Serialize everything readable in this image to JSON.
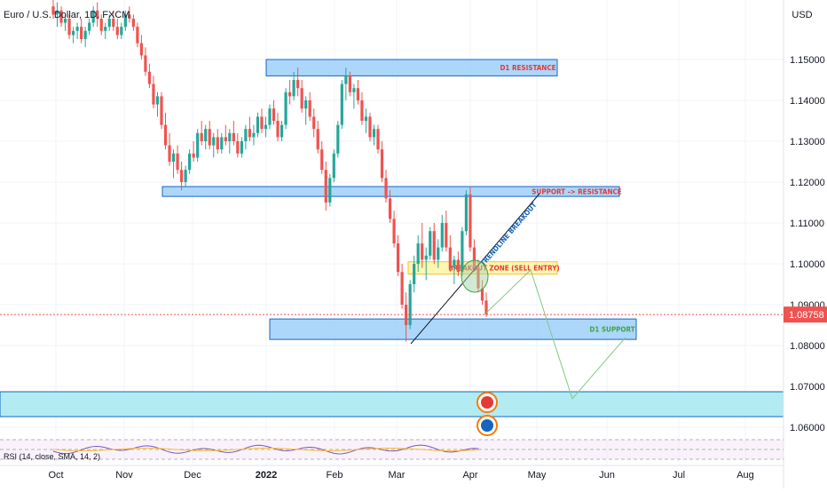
{
  "header": {
    "symbol": "Euro / U.S. Dollar, 1D, FXCM",
    "currency": "USD"
  },
  "chart_data": {
    "type": "candlestick",
    "price_axis_ticks": [
      "1.15000",
      "1.14000",
      "1.13000",
      "1.12000",
      "1.11000",
      "1.10000",
      "1.09000",
      "1.08000",
      "1.07000",
      "1.06000"
    ],
    "time_axis_ticks": [
      "Oct",
      "Nov",
      "Dec",
      "2022",
      "Feb",
      "Mar",
      "Apr",
      "May",
      "Jun",
      "Jul",
      "Aug"
    ],
    "last_price": "1.08758",
    "zones": [
      {
        "label": "D1 RESISTANCE",
        "top": 1.15,
        "bottom": 1.146,
        "color": "#e53935"
      },
      {
        "label": "SUPPORT -> RESISTANCE",
        "top": 1.1189,
        "bottom": 1.1165,
        "color": "#e53935"
      },
      {
        "label": "BREAKOUT ZONE (SELL ENTRY)",
        "top": 1.1005,
        "bottom": 1.0975,
        "color": "#e53935"
      },
      {
        "label": "D1 SUPPORT",
        "top": 1.0865,
        "bottom": 1.0815,
        "color": "#43a047"
      }
    ],
    "trendline_label": "TRENDLINE BREAKOUT",
    "projection_path": [
      1.088,
      1.0985,
      1.067,
      1.082
    ],
    "candles_approx": [
      [
        1.163,
        1.166,
        1.16,
        1.161
      ],
      [
        1.161,
        1.164,
        1.158,
        1.162
      ],
      [
        1.162,
        1.163,
        1.158,
        1.159
      ],
      [
        1.159,
        1.161,
        1.157,
        1.16
      ],
      [
        1.16,
        1.161,
        1.155,
        1.156
      ],
      [
        1.156,
        1.158,
        1.154,
        1.157
      ],
      [
        1.157,
        1.159,
        1.155,
        1.158
      ],
      [
        1.158,
        1.16,
        1.154,
        1.155
      ],
      [
        1.155,
        1.158,
        1.153,
        1.157
      ],
      [
        1.157,
        1.16,
        1.156,
        1.159
      ],
      [
        1.159,
        1.163,
        1.158,
        1.162
      ],
      [
        1.162,
        1.164,
        1.158,
        1.16
      ],
      [
        1.16,
        1.161,
        1.156,
        1.157
      ],
      [
        1.157,
        1.159,
        1.155,
        1.158
      ],
      [
        1.158,
        1.161,
        1.157,
        1.16
      ],
      [
        1.16,
        1.162,
        1.157,
        1.158
      ],
      [
        1.158,
        1.16,
        1.155,
        1.156
      ],
      [
        1.156,
        1.159,
        1.155,
        1.158
      ],
      [
        1.158,
        1.162,
        1.157,
        1.161
      ],
      [
        1.161,
        1.163,
        1.159,
        1.16
      ],
      [
        1.16,
        1.161,
        1.157,
        1.158
      ],
      [
        1.158,
        1.159,
        1.153,
        1.154
      ],
      [
        1.154,
        1.156,
        1.15,
        1.151
      ],
      [
        1.151,
        1.153,
        1.146,
        1.147
      ],
      [
        1.147,
        1.149,
        1.143,
        1.144
      ],
      [
        1.144,
        1.146,
        1.138,
        1.139
      ],
      [
        1.139,
        1.142,
        1.136,
        1.141
      ],
      [
        1.141,
        1.142,
        1.133,
        1.134
      ],
      [
        1.134,
        1.137,
        1.128,
        1.129
      ],
      [
        1.129,
        1.132,
        1.124,
        1.125
      ],
      [
        1.125,
        1.128,
        1.121,
        1.127
      ],
      [
        1.127,
        1.129,
        1.122,
        1.123
      ],
      [
        1.123,
        1.125,
        1.118,
        1.12
      ],
      [
        1.12,
        1.124,
        1.119,
        1.123
      ],
      [
        1.123,
        1.128,
        1.122,
        1.127
      ],
      [
        1.127,
        1.13,
        1.125,
        1.126
      ],
      [
        1.126,
        1.133,
        1.125,
        1.132
      ],
      [
        1.132,
        1.135,
        1.129,
        1.13
      ],
      [
        1.13,
        1.134,
        1.128,
        1.133
      ],
      [
        1.133,
        1.135,
        1.128,
        1.129
      ],
      [
        1.129,
        1.132,
        1.126,
        1.131
      ],
      [
        1.131,
        1.133,
        1.127,
        1.128
      ],
      [
        1.128,
        1.132,
        1.127,
        1.131
      ],
      [
        1.131,
        1.134,
        1.129,
        1.13
      ],
      [
        1.13,
        1.133,
        1.127,
        1.132
      ],
      [
        1.132,
        1.135,
        1.129,
        1.13
      ],
      [
        1.13,
        1.132,
        1.126,
        1.127
      ],
      [
        1.127,
        1.131,
        1.126,
        1.13
      ],
      [
        1.13,
        1.134,
        1.128,
        1.133
      ],
      [
        1.133,
        1.136,
        1.13,
        1.131
      ],
      [
        1.131,
        1.134,
        1.129,
        1.132
      ],
      [
        1.132,
        1.137,
        1.131,
        1.136
      ],
      [
        1.136,
        1.138,
        1.132,
        1.133
      ],
      [
        1.133,
        1.136,
        1.131,
        1.134
      ],
      [
        1.134,
        1.139,
        1.133,
        1.138
      ],
      [
        1.138,
        1.14,
        1.134,
        1.135
      ],
      [
        1.135,
        1.137,
        1.13,
        1.131
      ],
      [
        1.131,
        1.135,
        1.13,
        1.134
      ],
      [
        1.134,
        1.143,
        1.133,
        1.142
      ],
      [
        1.142,
        1.145,
        1.139,
        1.141
      ],
      [
        1.141,
        1.147,
        1.14,
        1.145
      ],
      [
        1.145,
        1.148,
        1.141,
        1.143
      ],
      [
        1.143,
        1.145,
        1.137,
        1.138
      ],
      [
        1.138,
        1.141,
        1.134,
        1.14
      ],
      [
        1.14,
        1.142,
        1.135,
        1.136
      ],
      [
        1.136,
        1.138,
        1.131,
        1.133
      ],
      [
        1.133,
        1.135,
        1.127,
        1.128
      ],
      [
        1.128,
        1.13,
        1.122,
        1.123
      ],
      [
        1.123,
        1.125,
        1.113,
        1.115
      ],
      [
        1.115,
        1.122,
        1.114,
        1.121
      ],
      [
        1.121,
        1.128,
        1.12,
        1.127
      ],
      [
        1.127,
        1.135,
        1.126,
        1.134
      ],
      [
        1.134,
        1.145,
        1.133,
        1.144
      ],
      [
        1.144,
        1.148,
        1.14,
        1.146
      ],
      [
        1.146,
        1.147,
        1.141,
        1.142
      ],
      [
        1.142,
        1.144,
        1.138,
        1.143
      ],
      [
        1.143,
        1.145,
        1.139,
        1.14
      ],
      [
        1.14,
        1.142,
        1.134,
        1.135
      ],
      [
        1.135,
        1.138,
        1.132,
        1.136
      ],
      [
        1.136,
        1.137,
        1.13,
        1.131
      ],
      [
        1.131,
        1.134,
        1.129,
        1.133
      ],
      [
        1.133,
        1.134,
        1.127,
        1.128
      ],
      [
        1.128,
        1.13,
        1.12,
        1.121
      ],
      [
        1.121,
        1.123,
        1.115,
        1.116
      ],
      [
        1.116,
        1.118,
        1.11,
        1.111
      ],
      [
        1.111,
        1.113,
        1.104,
        1.105
      ],
      [
        1.105,
        1.107,
        1.097,
        1.098
      ],
      [
        1.098,
        1.1,
        1.089,
        1.09
      ],
      [
        1.09,
        1.093,
        1.081,
        1.085
      ],
      [
        1.085,
        1.096,
        1.084,
        1.095
      ],
      [
        1.095,
        1.102,
        1.093,
        1.1
      ],
      [
        1.1,
        1.107,
        1.098,
        1.105
      ],
      [
        1.105,
        1.11,
        1.099,
        1.101
      ],
      [
        1.101,
        1.104,
        1.096,
        1.102
      ],
      [
        1.102,
        1.109,
        1.101,
        1.108
      ],
      [
        1.108,
        1.11,
        1.1,
        1.101
      ],
      [
        1.101,
        1.106,
        1.099,
        1.104
      ],
      [
        1.104,
        1.112,
        1.103,
        1.11
      ],
      [
        1.11,
        1.113,
        1.103,
        1.104
      ],
      [
        1.104,
        1.107,
        1.098,
        1.099
      ],
      [
        1.099,
        1.102,
        1.095,
        1.101
      ],
      [
        1.101,
        1.103,
        1.097,
        1.098
      ],
      [
        1.098,
        1.109,
        1.097,
        1.108
      ],
      [
        1.108,
        1.118,
        1.107,
        1.117
      ],
      [
        1.117,
        1.119,
        1.103,
        1.104
      ],
      [
        1.104,
        1.106,
        1.098,
        1.099
      ],
      [
        1.099,
        1.101,
        1.093,
        1.094
      ],
      [
        1.094,
        1.096,
        1.09,
        1.091
      ],
      [
        1.091,
        1.093,
        1.087,
        1.0876
      ]
    ]
  },
  "indicator": {
    "label": "RSI (14, close, SMA, 14, 2)"
  },
  "colors": {
    "up": "#26a69a",
    "down": "#ef5350",
    "zone_fill": "#90caf9",
    "zone_border": "#1565c0",
    "wide_zone": "#b2ebf2",
    "price_line": "#ef5350"
  }
}
